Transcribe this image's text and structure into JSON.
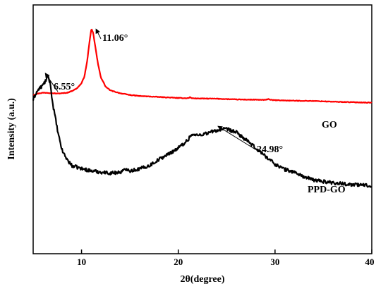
{
  "chart_data": {
    "type": "line",
    "title": "",
    "xlabel": "2θ(degree)",
    "ylabel": "Intensity (a.u.)",
    "xlim": [
      5,
      40
    ],
    "ylim": [
      0,
      100
    ],
    "xticks": [
      10,
      20,
      30,
      40
    ],
    "yticks": [],
    "grid": false,
    "legend": "inline labels at right",
    "series": [
      {
        "name": "GO",
        "color": "#ff0000",
        "x": [
          5.0,
          5.5,
          6.0,
          6.5,
          7.0,
          7.5,
          8.0,
          8.5,
          9.0,
          9.5,
          10.0,
          10.3,
          10.6,
          10.8,
          11.0,
          11.06,
          11.2,
          11.4,
          11.7,
          12.0,
          12.5,
          13.0,
          14.0,
          15.0,
          16.0,
          18.0,
          20.0,
          21.0,
          21.2,
          21.4,
          22.0,
          24.0,
          26.0,
          28.0,
          29.0,
          29.3,
          29.6,
          30.0,
          32.0,
          34.0,
          36.0,
          38.0,
          40.0
        ],
        "y": [
          63.8,
          64.4,
          64.7,
          64.7,
          64.5,
          64.4,
          64.5,
          64.7,
          65.4,
          66.4,
          68.5,
          71.3,
          77.8,
          84.6,
          89.8,
          90.0,
          88.8,
          83.8,
          76.3,
          70.9,
          67.1,
          65.6,
          64.5,
          63.8,
          63.4,
          63.0,
          62.6,
          62.5,
          62.9,
          62.5,
          62.4,
          62.3,
          62.0,
          61.9,
          61.8,
          62.2,
          61.8,
          61.7,
          61.5,
          61.4,
          61.1,
          60.9,
          60.7
        ]
      },
      {
        "name": "PPD-GO",
        "color": "#000000",
        "x": [
          5.0,
          5.3,
          5.6,
          6.0,
          6.3,
          6.55,
          6.8,
          7.0,
          7.3,
          7.6,
          8.0,
          8.5,
          9.0,
          10.0,
          11.0,
          12.0,
          13.0,
          14.0,
          14.8,
          15.0,
          16.0,
          17.0,
          18.0,
          19.0,
          20.0,
          21.0,
          21.3,
          22.0,
          23.0,
          24.0,
          24.98,
          26.0,
          27.0,
          28.0,
          29.0,
          30.0,
          31.0,
          32.0,
          33.0,
          34.0,
          36.0,
          38.0,
          40.0
        ],
        "y": [
          61.8,
          64.6,
          66.2,
          67.7,
          69.6,
          71.4,
          67.7,
          60.7,
          54.5,
          47.8,
          41.5,
          37.9,
          35.4,
          34.2,
          33.3,
          32.8,
          32.4,
          32.8,
          34.2,
          33.3,
          34.1,
          35.4,
          37.9,
          40.1,
          42.5,
          45.7,
          47.8,
          47.6,
          48.5,
          49.6,
          50.1,
          48.8,
          45.7,
          42.5,
          39.3,
          36.0,
          33.9,
          32.8,
          30.9,
          29.6,
          28.5,
          27.8,
          27.4
        ]
      }
    ],
    "annotations": [
      {
        "label": "6.55°",
        "x": 6.55,
        "y": 71.4
      },
      {
        "label": "11.06°",
        "x": 11.06,
        "y": 90.0
      },
      {
        "label": "24.98°",
        "x": 24.98,
        "y": 50.1
      }
    ]
  }
}
